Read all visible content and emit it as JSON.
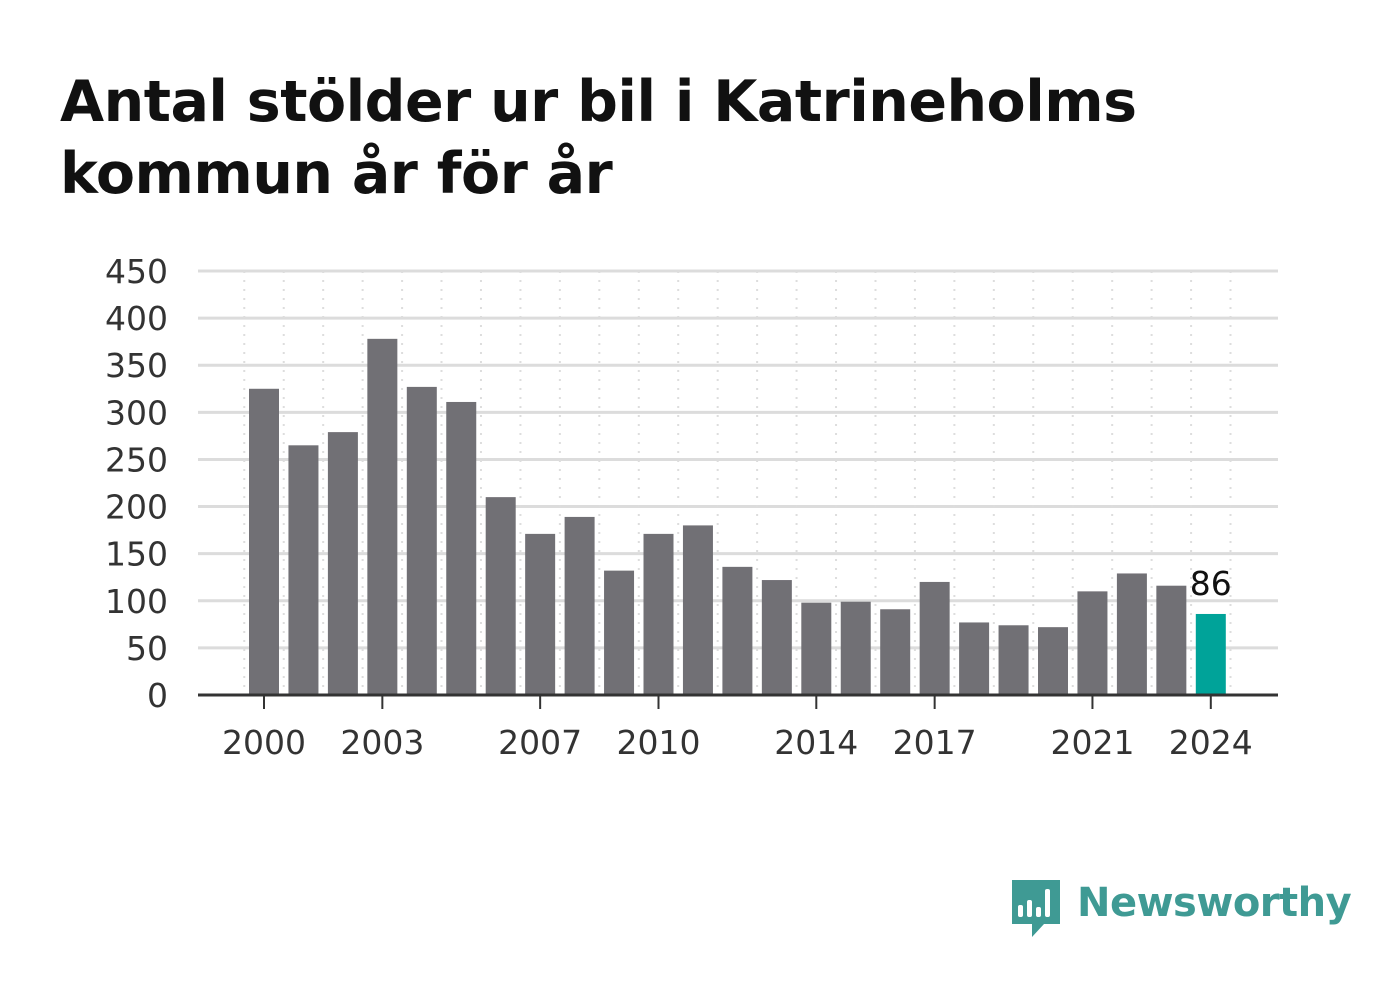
{
  "title": "Antal stölder ur bil i Katrineholms kommun år för år",
  "brand": {
    "name": "Newsworthy",
    "color": "#3f9a94",
    "icon": "speech-bubble-bar-chart-icon"
  },
  "chart_data": {
    "type": "bar",
    "title": "Antal stölder ur bil i Katrineholms kommun år för år",
    "xlabel": "",
    "ylabel": "",
    "categories": [
      "2000",
      "2001",
      "2002",
      "2003",
      "2004",
      "2005",
      "2006",
      "2007",
      "2008",
      "2009",
      "2010",
      "2011",
      "2012",
      "2013",
      "2014",
      "2015",
      "2016",
      "2017",
      "2018",
      "2019",
      "2020",
      "2021",
      "2022",
      "2023",
      "2024"
    ],
    "values": [
      325,
      265,
      279,
      378,
      327,
      311,
      210,
      171,
      189,
      132,
      171,
      180,
      136,
      122,
      98,
      99,
      91,
      120,
      77,
      74,
      72,
      110,
      129,
      116,
      86
    ],
    "x_tick_labels": [
      "2000",
      "2003",
      "2007",
      "2010",
      "2014",
      "2017",
      "2021",
      "2024"
    ],
    "y_ticks": [
      0,
      50,
      100,
      150,
      200,
      250,
      300,
      350,
      400,
      450
    ],
    "ylim": [
      0,
      450
    ],
    "grid": true,
    "legend": "none",
    "bar_color": "#717075",
    "highlight_color": "#00a399",
    "highlight_category": "2024",
    "annotations": [
      {
        "category": "2024",
        "text": "86"
      }
    ]
  }
}
